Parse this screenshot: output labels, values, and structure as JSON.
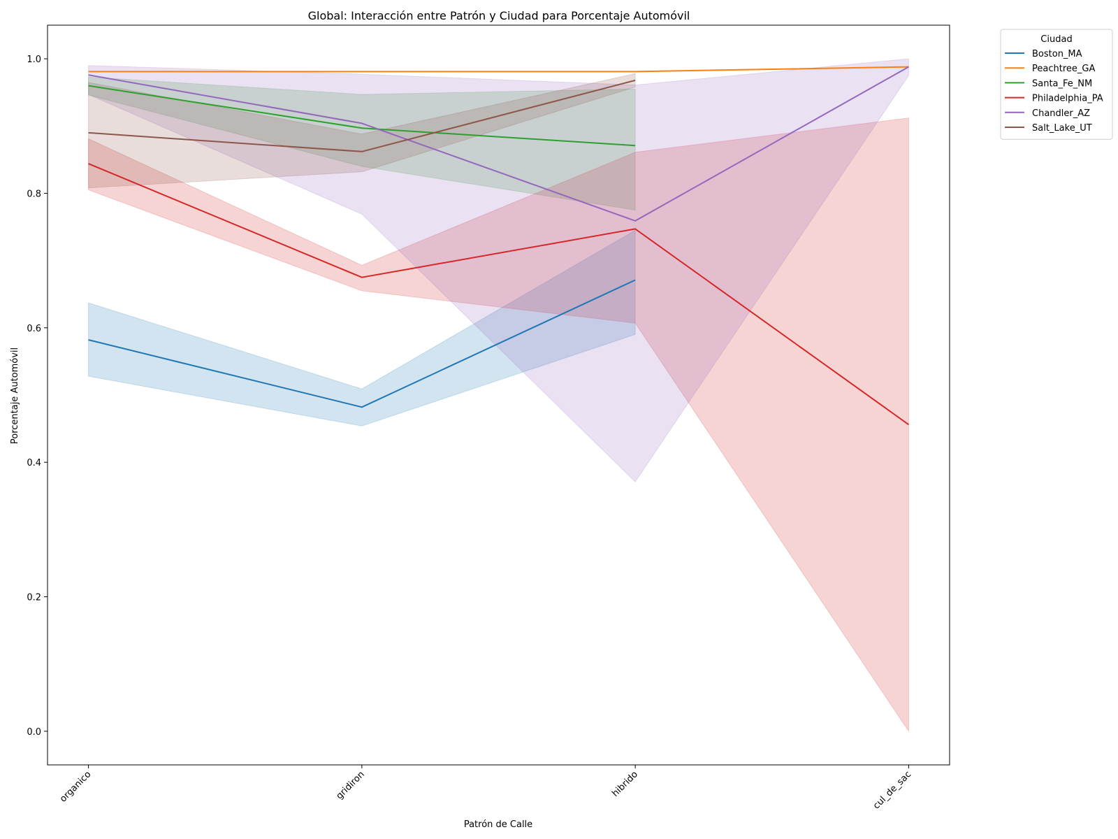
{
  "chart_data": {
    "type": "line",
    "title": "Global: Interacción entre Patrón y Ciudad para Porcentaje Automóvil",
    "xlabel": "Patrón de Calle",
    "ylabel": "Porcentaje Automóvil",
    "categories": [
      "organico",
      "gridiron",
      "hibrido",
      "cul_de_sac"
    ],
    "ylim": [
      -0.05,
      1.05
    ],
    "yticks": [
      0.0,
      0.2,
      0.4,
      0.6,
      0.8,
      1.0
    ],
    "ytick_labels": [
      "0.0",
      "0.2",
      "0.4",
      "0.6",
      "0.8",
      "1.0"
    ],
    "grid": false,
    "legend": {
      "title": "Ciudad",
      "placement": "outside top-right"
    },
    "series": [
      {
        "name": "Boston_MA",
        "color": "#1f77b4",
        "values": [
          0.582,
          0.482,
          0.671,
          null
        ],
        "ci_low": [
          0.528,
          0.454,
          0.59,
          null
        ],
        "ci_high": [
          0.637,
          0.509,
          0.745,
          null
        ]
      },
      {
        "name": "Peachtree_GA",
        "color": "#ff7f0e",
        "values": [
          0.981,
          0.981,
          0.981,
          0.988
        ],
        "ci_low": [
          0.981,
          0.981,
          0.981,
          0.988
        ],
        "ci_high": [
          0.981,
          0.981,
          0.981,
          0.988
        ]
      },
      {
        "name": "Santa_Fe_NM",
        "color": "#2ca02c",
        "values": [
          0.96,
          0.897,
          0.871,
          null
        ],
        "ci_low": [
          0.946,
          0.84,
          0.775,
          null
        ],
        "ci_high": [
          0.973,
          0.947,
          0.955,
          null
        ]
      },
      {
        "name": "Philadelphia_PA",
        "color": "#d62728",
        "values": [
          0.844,
          0.675,
          0.747,
          0.456
        ],
        "ci_low": [
          0.805,
          0.655,
          0.607,
          0.0
        ],
        "ci_high": [
          0.881,
          0.693,
          0.861,
          0.912
        ]
      },
      {
        "name": "Chandler_AZ",
        "color": "#9467bd",
        "values": [
          0.976,
          0.904,
          0.759,
          0.988
        ],
        "ci_low": [
          0.947,
          0.769,
          0.371,
          0.975
        ],
        "ci_high": [
          0.99,
          0.977,
          0.961,
          1.0
        ]
      },
      {
        "name": "Salt_Lake_UT",
        "color": "#8c564b",
        "values": [
          0.89,
          0.862,
          0.968,
          null
        ],
        "ci_low": [
          0.808,
          0.832,
          0.958,
          null
        ],
        "ci_high": [
          0.965,
          0.888,
          0.978,
          null
        ]
      }
    ]
  }
}
